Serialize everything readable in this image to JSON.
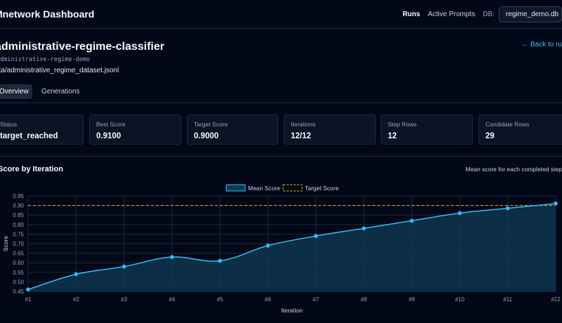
{
  "header": {
    "brand": "Mnetwork Dashboard",
    "nav": [
      {
        "label": "Runs",
        "active": true
      },
      {
        "label": "Active Prompts",
        "active": false
      }
    ],
    "db_label": "DB:",
    "db_value": "regime_demo.db"
  },
  "project": {
    "title": "administrative-regime-classifier",
    "slug": "administrative-regime-demo",
    "path": "ata/administrative_regime_dataset.jsonl",
    "back_link": "← Back to ru"
  },
  "tabs": [
    {
      "label": "Overview",
      "active": true
    },
    {
      "label": "Generations",
      "active": false
    }
  ],
  "stats": [
    {
      "label": "Status",
      "value": "target_reached"
    },
    {
      "label": "Best Score",
      "value": "0.9100"
    },
    {
      "label": "Target Score",
      "value": "0.9000"
    },
    {
      "label": "Iterations",
      "value": "12/12"
    },
    {
      "label": "Step Rows",
      "value": "12"
    },
    {
      "label": "Candidate Rows",
      "value": "29"
    }
  ],
  "chart_section": {
    "title": "Score by Iteration",
    "subtitle": "Mean score for each completed step"
  },
  "chart_data": {
    "type": "line",
    "categories": [
      "#1",
      "#2",
      "#3",
      "#4",
      "#5",
      "#6",
      "#7",
      "#8",
      "#9",
      "#10",
      "#11",
      "#12"
    ],
    "series": [
      {
        "name": "Mean Score",
        "values": [
          0.46,
          0.54,
          0.58,
          0.63,
          0.61,
          0.69,
          0.74,
          0.78,
          0.82,
          0.86,
          0.885,
          0.91
        ]
      }
    ],
    "target": {
      "name": "Target Score",
      "value": 0.9
    },
    "xlabel": "Iteration",
    "ylabel": "Score",
    "ylim": [
      0.45,
      0.95
    ],
    "yticks": [
      "0.45",
      "0.50",
      "0.55",
      "0.60",
      "0.65",
      "0.70",
      "0.75",
      "0.80",
      "0.85",
      "0.90",
      "0.95"
    ],
    "grid": true,
    "legend": "top-center",
    "colors": {
      "line": "#38bdf8",
      "fill": "#0f3a57",
      "target": "#eab308"
    }
  }
}
